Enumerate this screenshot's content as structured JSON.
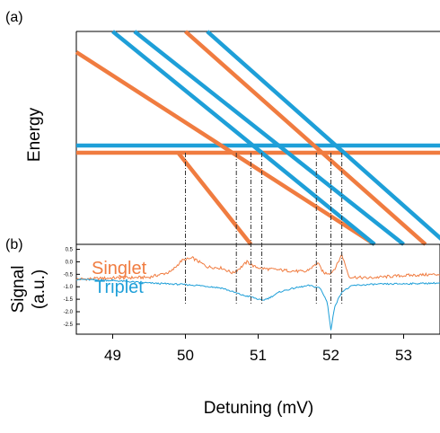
{
  "chart_data": [
    {
      "panel_label": "(a)",
      "type": "line",
      "ylabel": "Energy",
      "xlim": [
        48.5,
        53.5
      ],
      "colors": {
        "singlet": "#f07c40",
        "triplet": "#1e9fd8"
      },
      "flat_levels": [
        {
          "series": "triplet",
          "x": [
            48.5,
            53.5
          ]
        },
        {
          "series": "singlet",
          "x": [
            48.5,
            53.5
          ]
        }
      ],
      "diagonals": [
        {
          "series": "singlet",
          "x_top": 48.5,
          "x_bottom": 52.6
        },
        {
          "series": "triplet",
          "x_top": 49.0,
          "x_bottom": 52.6
        },
        {
          "series": "triplet",
          "x_top": 49.3,
          "x_bottom": 53.0
        },
        {
          "series": "singlet",
          "x_top": 50.0,
          "x_bottom": 53.3
        },
        {
          "series": "triplet",
          "x_top": 50.3,
          "x_bottom": 53.6
        },
        {
          "series": "singlet",
          "x_top": 49.9,
          "x_bottom": 50.9
        }
      ],
      "crossings": [
        50.0,
        50.7,
        50.9,
        51.05,
        51.8,
        52.0,
        52.15
      ]
    },
    {
      "panel_label": "(b)",
      "type": "line",
      "ylabel": "Signal\n(a.u.)",
      "xlabel": "Detuning (mV)",
      "xlim": [
        48.5,
        53.5
      ],
      "ylim": [
        -2.9,
        0.7
      ],
      "xticks": [
        49,
        50,
        51,
        52,
        53
      ],
      "yticks": [
        "0.5",
        "0.0",
        "-0.5",
        "-1.0",
        "-1.5",
        "-2.0",
        "-2.5"
      ],
      "series": [
        {
          "name": "Singlet",
          "color": "#f07c40",
          "x": [
            48.5,
            49.0,
            49.5,
            49.8,
            49.95,
            50.1,
            50.3,
            50.5,
            50.65,
            50.75,
            50.85,
            50.95,
            51.1,
            51.4,
            51.65,
            51.75,
            51.82,
            51.9,
            52.0,
            52.07,
            52.15,
            52.25,
            52.5,
            53.0,
            53.5
          ],
          "y": [
            -0.7,
            -0.65,
            -0.62,
            -0.4,
            0.05,
            0.15,
            -0.2,
            -0.25,
            -0.45,
            -0.25,
            0.0,
            -0.2,
            -0.28,
            -0.35,
            -0.4,
            -0.2,
            -0.05,
            -0.45,
            -0.45,
            -0.2,
            0.3,
            -0.6,
            -0.65,
            -0.55,
            -0.5
          ]
        },
        {
          "name": "Triplet",
          "color": "#1e9fd8",
          "x": [
            48.5,
            49.0,
            49.5,
            49.9,
            50.2,
            50.5,
            50.65,
            50.8,
            50.9,
            51.05,
            51.15,
            51.3,
            51.5,
            51.7,
            51.85,
            51.95,
            52.0,
            52.05,
            52.15,
            52.3,
            52.6,
            53.0,
            53.5
          ],
          "y": [
            -0.7,
            -0.75,
            -0.85,
            -0.9,
            -0.95,
            -1.05,
            -1.2,
            -1.35,
            -1.4,
            -1.55,
            -1.45,
            -1.2,
            -1.05,
            -0.95,
            -1.05,
            -1.6,
            -2.75,
            -1.8,
            -1.2,
            -0.95,
            -0.9,
            -0.88,
            -0.85
          ]
        }
      ],
      "crossings": [
        50.0,
        50.7,
        50.9,
        51.05,
        51.8,
        52.0,
        52.15
      ]
    }
  ]
}
